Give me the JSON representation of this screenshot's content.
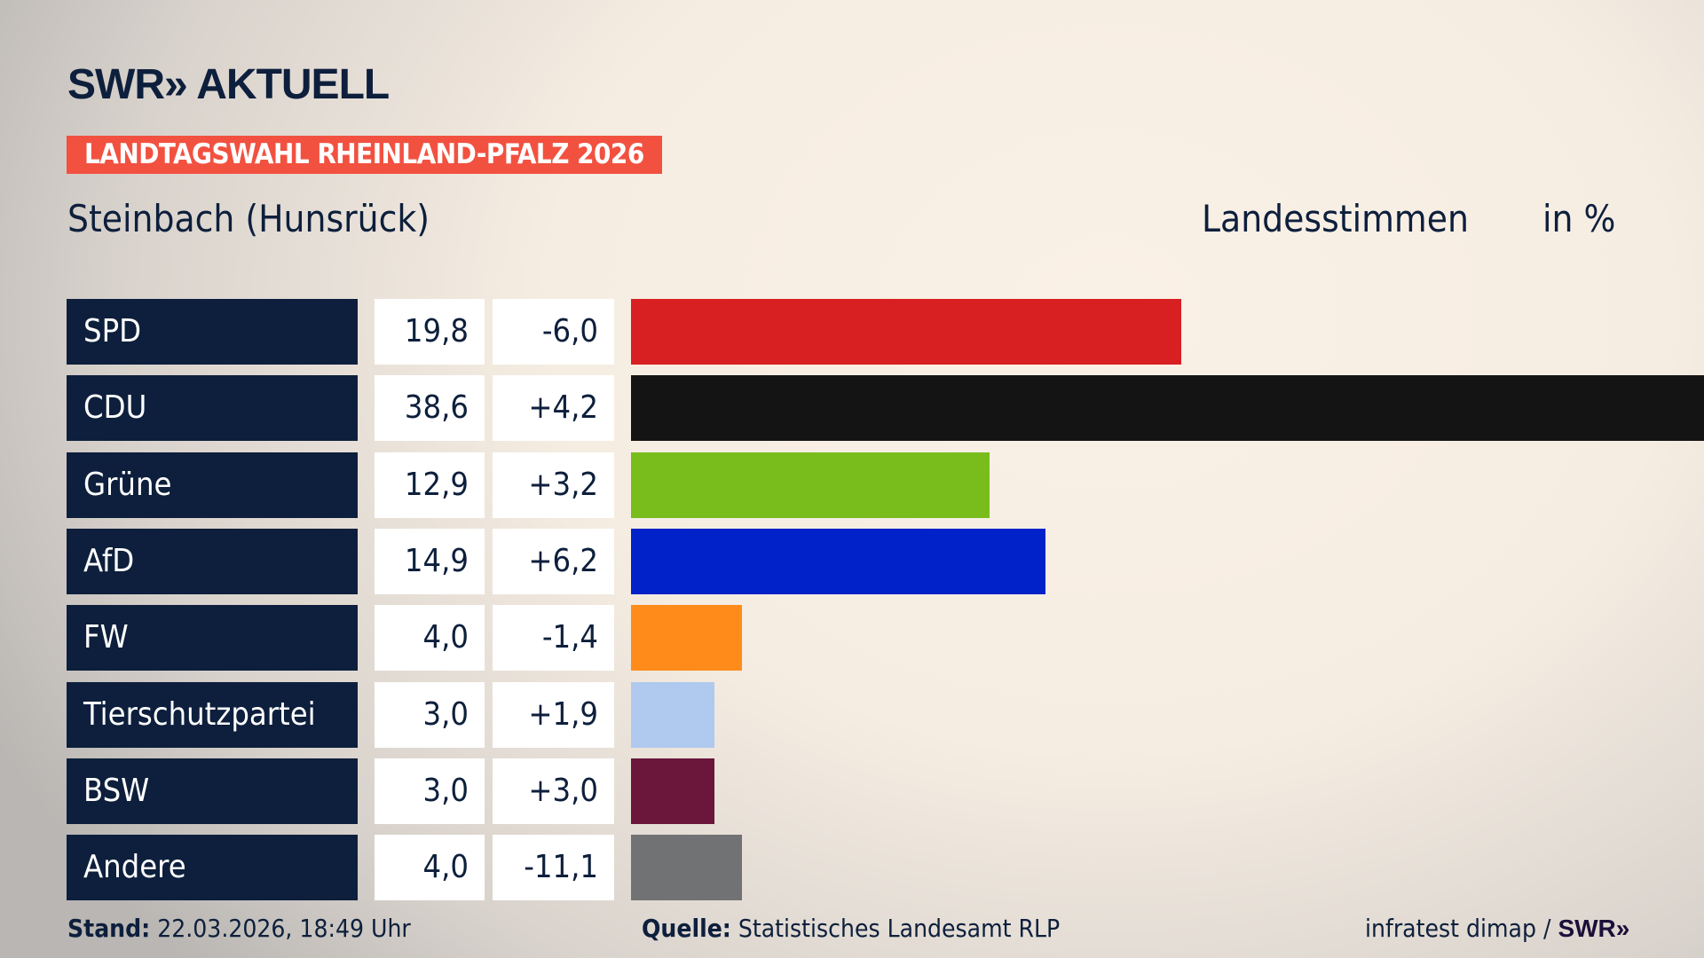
{
  "header": {
    "logo": "SWR» AKTUELL",
    "banner": "LANDTAGSWAHL RHEINLAND-PFALZ 2026",
    "region": "Steinbach (Hunsrück)",
    "metric": "Landesstimmen",
    "unit": "in %"
  },
  "chart_data": {
    "type": "bar",
    "orientation": "horizontal",
    "categories": [
      "SPD",
      "CDU",
      "Grüne",
      "AfD",
      "FW",
      "Tierschutzpartei",
      "BSW",
      "Andere"
    ],
    "values": [
      19.8,
      38.6,
      12.9,
      14.9,
      4.0,
      3.0,
      3.0,
      4.0
    ],
    "value_labels": [
      "19,8",
      "38,6",
      "12,9",
      "14,9",
      "4,0",
      "3,0",
      "3,0",
      "4,0"
    ],
    "diff_labels": [
      "-6,0",
      "+4,2",
      "+3,2",
      "+6,2",
      "-1,4",
      "+1,9",
      "+3,0",
      "-11,1"
    ],
    "colors": [
      "#d81f22",
      "#141414",
      "#78bd1c",
      "#0022c8",
      "#ff8c1a",
      "#afc9ef",
      "#6a173b",
      "#717273"
    ],
    "xlim": [
      0,
      38.6
    ],
    "grid": false
  },
  "footer": {
    "stand_label": "Stand:",
    "stand_value": "22.03.2026, 18:49 Uhr",
    "source_label": "Quelle:",
    "source_value": "Statistisches Landesamt RLP",
    "credit": "infratest dimap /",
    "credit_logo": "SWR»"
  }
}
